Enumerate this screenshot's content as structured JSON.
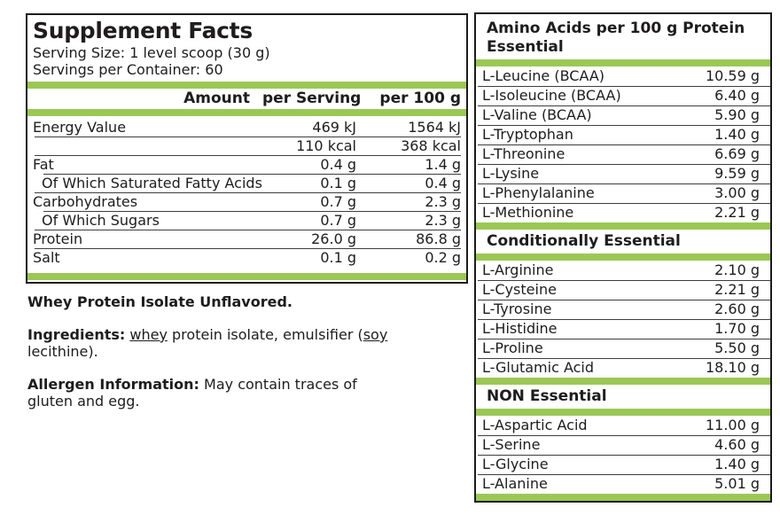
{
  "accent_green": "#9BC855",
  "left_panel": {
    "title": "Supplement Facts",
    "serving_size": "Serving Size: 1 level scoop (30 g)",
    "servings_per_container": "Servings per Container: 60",
    "header": {
      "amount": "Amount",
      "per_serving": "per Serving",
      "per_100g": "per 100 g"
    },
    "rows": [
      {
        "label": "Energy Value",
        "per_serving": "469 kJ",
        "per_100g": "1564 kJ"
      },
      {
        "label": "",
        "per_serving": "110 kcal",
        "per_100g": "368 kcal"
      },
      {
        "label": "Fat",
        "per_serving": "0.4 g",
        "per_100g": "1.4 g"
      },
      {
        "label": "Of Which Saturated Fatty Acids",
        "per_serving": "0.1 g",
        "per_100g": "0.4 g"
      },
      {
        "label": "Carbohydrates",
        "per_serving": "0.7 g",
        "per_100g": "2.3 g"
      },
      {
        "label": "Of Which Sugars",
        "per_serving": "0.7 g",
        "per_100g": "2.3 g"
      },
      {
        "label": "Protein",
        "per_serving": "26.0 g",
        "per_100g": "86.8 g"
      },
      {
        "label": "Salt",
        "per_serving": "0.1 g",
        "per_100g": "0.2 g"
      }
    ]
  },
  "notes": {
    "product": "Whey Protein Isolate Unflavored.",
    "ingredients": {
      "label": "Ingredients:",
      "sep1": " ",
      "whey": "whey",
      "mid": " protein isolate, emulsifier (",
      "soy": "soy",
      "line2": "lecithine)."
    },
    "allergen": {
      "label": "Allergen Information:",
      "text": " May contain traces of",
      "line2": "gluten and egg."
    }
  },
  "right_panel": {
    "sections": [
      {
        "title_line1": "Amino Acids per 100 g Protein",
        "title_line2": "Essential",
        "rows": [
          {
            "name": "L-Leucine (BCAA)",
            "value": "10.59 g"
          },
          {
            "name": "L-Isoleucine (BCAA)",
            "value": "6.40 g"
          },
          {
            "name": "L-Valine (BCAA)",
            "value": "5.90 g"
          },
          {
            "name": "L-Tryptophan",
            "value": "1.40 g"
          },
          {
            "name": "L-Threonine",
            "value": "6.69 g"
          },
          {
            "name": "L-Lysine",
            "value": "9.59 g"
          },
          {
            "name": "L-Phenylalanine",
            "value": "3.00 g"
          },
          {
            "name": "L-Methionine",
            "value": "2.21 g"
          }
        ]
      },
      {
        "title": "Conditionally Essential",
        "rows": [
          {
            "name": "L-Arginine",
            "value": "2.10 g"
          },
          {
            "name": "L-Cysteine",
            "value": "2.21 g"
          },
          {
            "name": "L-Tyrosine",
            "value": "2.60 g"
          },
          {
            "name": "L-Histidine",
            "value": "1.70 g"
          },
          {
            "name": "L-Proline",
            "value": "5.50 g"
          },
          {
            "name": "L-Glutamic Acid",
            "value": "18.10 g"
          }
        ]
      },
      {
        "title": "NON Essential",
        "rows": [
          {
            "name": "L-Aspartic Acid",
            "value": "11.00 g"
          },
          {
            "name": "L-Serine",
            "value": "4.60 g"
          },
          {
            "name": "L-Glycine",
            "value": "1.40 g"
          },
          {
            "name": "L-Alanine",
            "value": "5.01 g"
          }
        ]
      }
    ]
  }
}
